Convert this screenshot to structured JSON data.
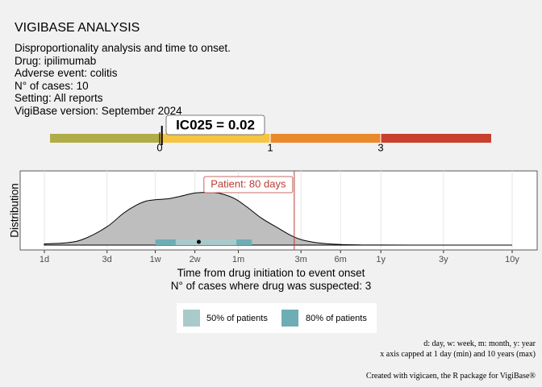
{
  "header": {
    "title": "VIGIBASE ANALYSIS",
    "lines": [
      "Disproportionality analysis and time to onset.",
      "Drug: ipilimumab",
      "Adverse event: colitis",
      "N° of cases: 10",
      "Setting: All reports",
      "VigiBase version: September 2024"
    ]
  },
  "ic_bar": {
    "label": "IC025 = 0.02",
    "value": 0.02,
    "thresholds": [
      "0",
      "1",
      "3"
    ],
    "segments": [
      {
        "from": "-inf",
        "to": 0,
        "color": "#b0ad49"
      },
      {
        "from": 0,
        "to": 1,
        "color": "#f5c542"
      },
      {
        "from": 1,
        "to": 3,
        "color": "#e9892a"
      },
      {
        "from": 3,
        "to": "+inf",
        "color": "#c9402f"
      }
    ]
  },
  "chart_data": {
    "type": "area",
    "title": "",
    "xlabel": "Time from drug initiation to event onset",
    "xlabel2": "N° of cases where drug was suspected: 3",
    "ylabel": "Distribution",
    "x_scale": "log",
    "xlim_days": [
      1,
      3650
    ],
    "x_ticks": [
      {
        "label": "1d",
        "days": 1
      },
      {
        "label": "3d",
        "days": 3
      },
      {
        "label": "1w",
        "days": 7
      },
      {
        "label": "2w",
        "days": 14
      },
      {
        "label": "1m",
        "days": 30
      },
      {
        "label": "3m",
        "days": 90
      },
      {
        "label": "6m",
        "days": 180
      },
      {
        "label": "1y",
        "days": 365
      },
      {
        "label": "3y",
        "days": 1095
      },
      {
        "label": "10y",
        "days": 3650
      }
    ],
    "density": {
      "x_days": [
        1,
        1.5,
        2,
        3,
        4,
        5,
        6,
        7,
        9,
        11,
        14,
        18,
        22,
        28,
        35,
        45,
        60,
        75,
        90,
        110,
        130,
        160,
        200,
        250,
        365,
        3650
      ],
      "y": [
        0.02,
        0.04,
        0.1,
        0.3,
        0.52,
        0.65,
        0.72,
        0.74,
        0.76,
        0.8,
        0.85,
        0.86,
        0.84,
        0.76,
        0.62,
        0.44,
        0.28,
        0.16,
        0.09,
        0.05,
        0.03,
        0.015,
        0.007,
        0.003,
        0.001,
        0.0
      ]
    },
    "ranges": [
      {
        "name": "80% of patients",
        "from_days": 7,
        "to_days": 38,
        "color": "#6fadb4"
      },
      {
        "name": "50% of patients",
        "from_days": 10,
        "to_days": 29,
        "color": "#a9cacb"
      }
    ],
    "median_days": 15,
    "patient_marker": {
      "label": "Patient: 80 days",
      "days": 80,
      "color": "#b93c36"
    },
    "grid": true,
    "legend": {
      "position": "bottom",
      "entries": [
        {
          "label": "50% of patients",
          "color": "#a9cacb"
        },
        {
          "label": "80% of patients",
          "color": "#6fadb4"
        }
      ]
    },
    "density_fill": "#bebebe"
  },
  "footer": {
    "notes": [
      "d: day, w: week, m: month, y: year",
      "x axis capped at 1 day (min) and 10 years (max)"
    ],
    "credit": "Created with vigicaen, the R package for VigiBase®"
  }
}
